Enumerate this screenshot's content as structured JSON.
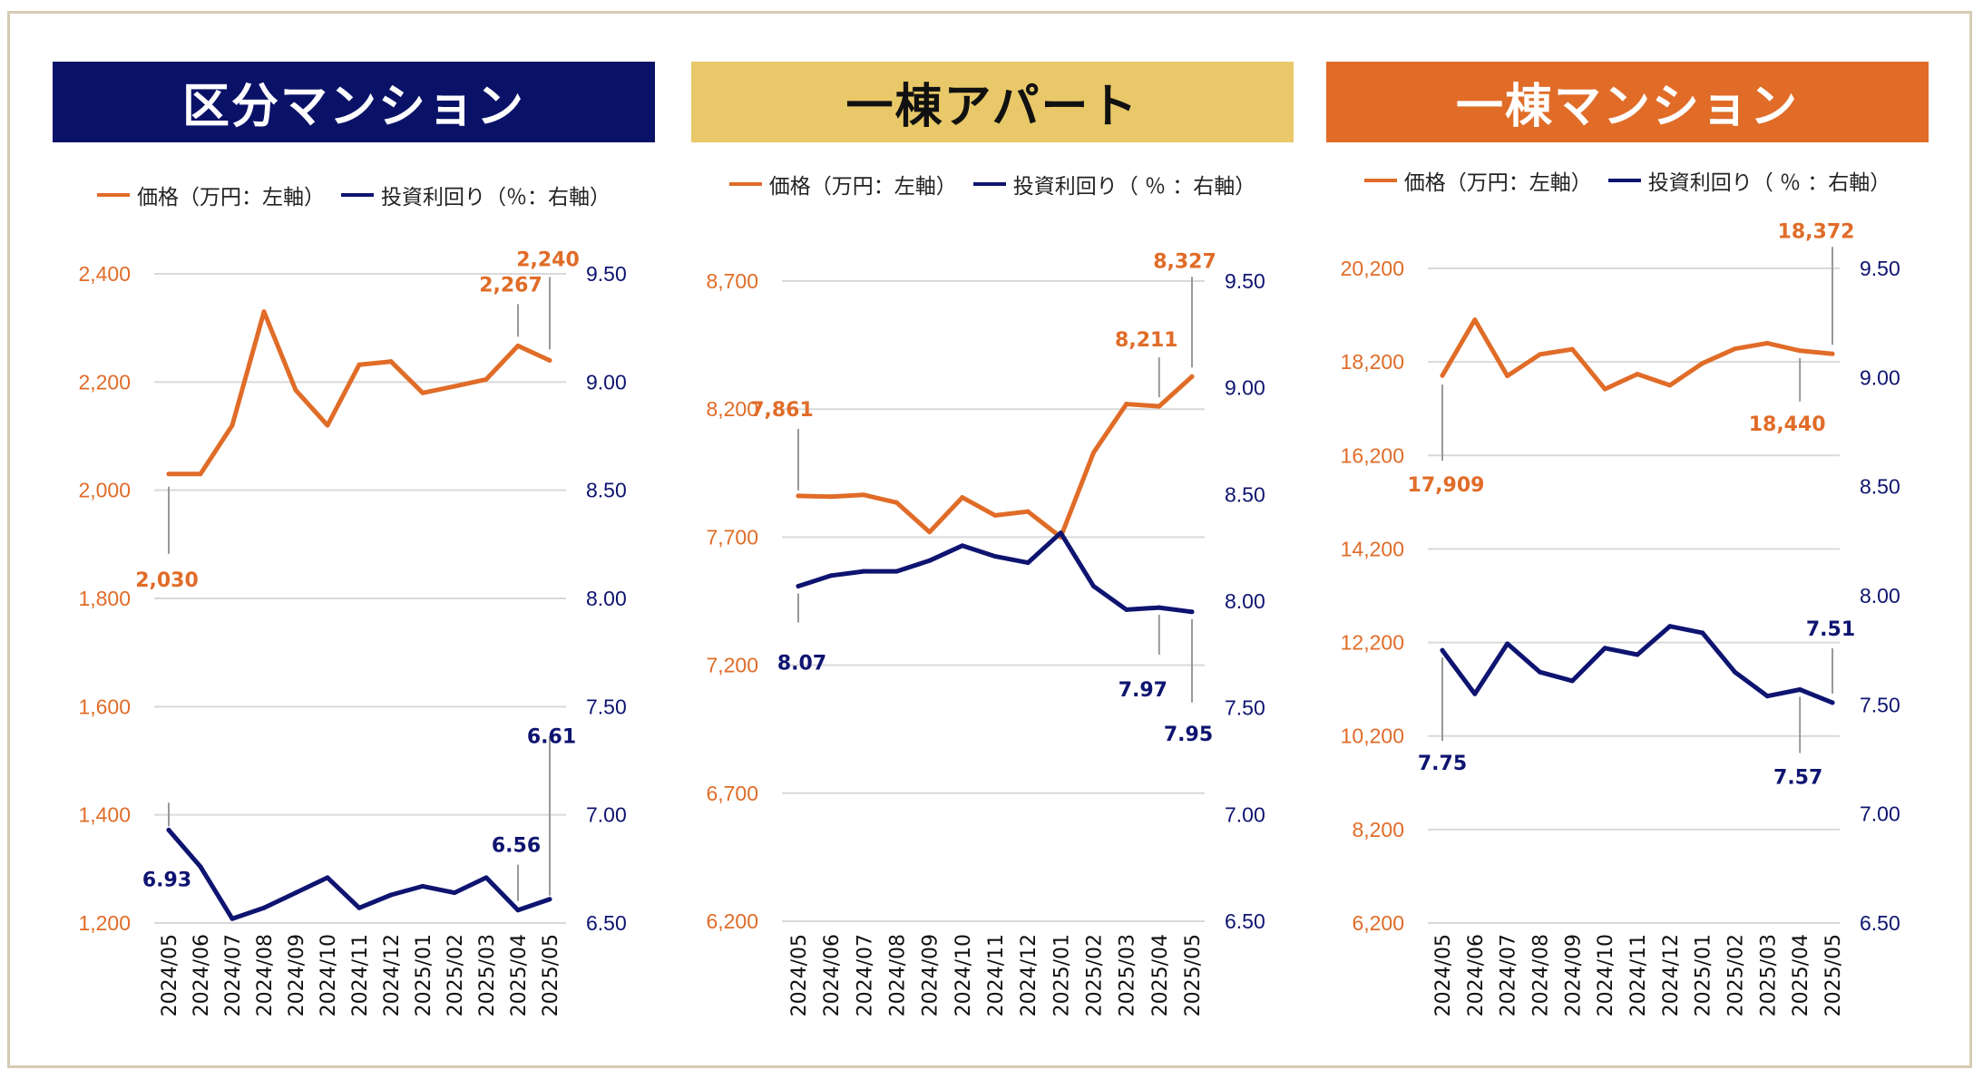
{
  "colors": {
    "price": "#e06c28",
    "yield": "#0e1470",
    "banner1_bg": "#0a1268",
    "banner2_bg": "#e8c868",
    "banner3_bg": "#e06c28",
    "banner1_fg": "#ffffff",
    "banner2_fg": "#111111",
    "banner3_fg": "#ffffff",
    "grid": "#d9d9d9"
  },
  "legend": {
    "price": "価格（万円：左軸）",
    "yield": "投資利回り（％：右軸）",
    "yield_spaced": "投資利回り（ ％ ：右軸）"
  },
  "chart_data": [
    {
      "type": "line",
      "title": "区分マンション",
      "categories": [
        "2024/05",
        "2024/06",
        "2024/07",
        "2024/08",
        "2024/09",
        "2024/10",
        "2024/11",
        "2024/12",
        "2025/01",
        "2025/02",
        "2025/03",
        "2025/04",
        "2025/05"
      ],
      "y_left": {
        "ticks": [
          "1,200",
          "1,400",
          "1,600",
          "1,800",
          "2,000",
          "2,200",
          "2,400"
        ],
        "range": [
          1200,
          2400
        ]
      },
      "y_right": {
        "ticks": [
          "6.50",
          "7.00",
          "7.50",
          "8.00",
          "8.50",
          "9.00",
          "9.50"
        ],
        "range": [
          6.5,
          9.5
        ]
      },
      "series": [
        {
          "name": "価格（万円：左軸）",
          "axis": "left",
          "values": [
            2030,
            2030,
            2120,
            2330,
            2185,
            2120,
            2232,
            2238,
            2180,
            2192,
            2205,
            2267,
            2240
          ]
        },
        {
          "name": "投資利回り（％：右軸）",
          "axis": "right",
          "values": [
            6.93,
            6.76,
            6.52,
            6.57,
            6.64,
            6.71,
            6.57,
            6.63,
            6.67,
            6.64,
            6.71,
            6.56,
            6.61
          ]
        }
      ],
      "annotations": [
        {
          "series": 0,
          "index": 0,
          "text": "2,030"
        },
        {
          "series": 0,
          "index": 11,
          "text": "2,267"
        },
        {
          "series": 0,
          "index": 12,
          "text": "2,240"
        },
        {
          "series": 1,
          "index": 0,
          "text": "6.93"
        },
        {
          "series": 1,
          "index": 11,
          "text": "6.56"
        },
        {
          "series": 1,
          "index": 12,
          "text": "6.61"
        }
      ]
    },
    {
      "type": "line",
      "title": "一棟アパート",
      "categories": [
        "2024/05",
        "2024/06",
        "2024/07",
        "2024/08",
        "2024/09",
        "2024/10",
        "2024/11",
        "2024/12",
        "2025/01",
        "2025/02",
        "2025/03",
        "2025/04",
        "2025/05"
      ],
      "y_left": {
        "ticks": [
          "6,200",
          "6,700",
          "7,200",
          "7,700",
          "8,200",
          "8,700"
        ],
        "range": [
          6200,
          8700
        ]
      },
      "y_right": {
        "ticks": [
          "6.50",
          "7.00",
          "7.50",
          "8.00",
          "8.50",
          "9.00",
          "9.50"
        ],
        "range": [
          6.5,
          9.5
        ]
      },
      "series": [
        {
          "name": "価格（万円：左軸）",
          "axis": "left",
          "values": [
            7861,
            7858,
            7865,
            7835,
            7720,
            7855,
            7785,
            7800,
            7700,
            8030,
            8220,
            8211,
            8327
          ]
        },
        {
          "name": "投資利回り（ ％ ：右軸）",
          "axis": "right",
          "values": [
            8.07,
            8.12,
            8.14,
            8.14,
            8.19,
            8.26,
            8.21,
            8.18,
            8.32,
            8.07,
            7.96,
            7.97,
            7.95
          ]
        }
      ],
      "annotations": [
        {
          "series": 0,
          "index": 0,
          "text": "7,861"
        },
        {
          "series": 0,
          "index": 11,
          "text": "8,211"
        },
        {
          "series": 0,
          "index": 12,
          "text": "8,327"
        },
        {
          "series": 1,
          "index": 0,
          "text": "8.07"
        },
        {
          "series": 1,
          "index": 11,
          "text": "7.97"
        },
        {
          "series": 1,
          "index": 12,
          "text": "7.95"
        }
      ]
    },
    {
      "type": "line",
      "title": "一棟マンション",
      "categories": [
        "2024/05",
        "2024/06",
        "2024/07",
        "2024/08",
        "2024/09",
        "2024/10",
        "2024/11",
        "2024/12",
        "2025/01",
        "2025/02",
        "2025/03",
        "2025/04",
        "2025/05"
      ],
      "y_left": {
        "ticks": [
          "6,200",
          "8,200",
          "10,200",
          "12,200",
          "14,200",
          "16,200",
          "18,200",
          "20,200"
        ],
        "range": [
          6200,
          20200
        ]
      },
      "y_right": {
        "ticks": [
          "6.50",
          "7.00",
          "7.50",
          "8.00",
          "8.50",
          "9.00",
          "9.50"
        ],
        "range": [
          6.5,
          9.5
        ]
      },
      "series": [
        {
          "name": "価格（万円：左軸）",
          "axis": "left",
          "values": [
            17909,
            19100,
            17900,
            18360,
            18470,
            17620,
            17940,
            17700,
            18170,
            18480,
            18600,
            18440,
            18372
          ]
        },
        {
          "name": "投資利回り（ ％ ：右軸）",
          "axis": "right",
          "values": [
            7.75,
            7.55,
            7.78,
            7.65,
            7.61,
            7.76,
            7.73,
            7.86,
            7.83,
            7.65,
            7.54,
            7.57,
            7.51
          ]
        }
      ],
      "annotations": [
        {
          "series": 0,
          "index": 0,
          "text": "17,909"
        },
        {
          "series": 0,
          "index": 11,
          "text": "18,440"
        },
        {
          "series": 0,
          "index": 12,
          "text": "18,372"
        },
        {
          "series": 1,
          "index": 0,
          "text": "7.75"
        },
        {
          "series": 1,
          "index": 11,
          "text": "7.57"
        },
        {
          "series": 1,
          "index": 12,
          "text": "7.51"
        }
      ]
    }
  ]
}
